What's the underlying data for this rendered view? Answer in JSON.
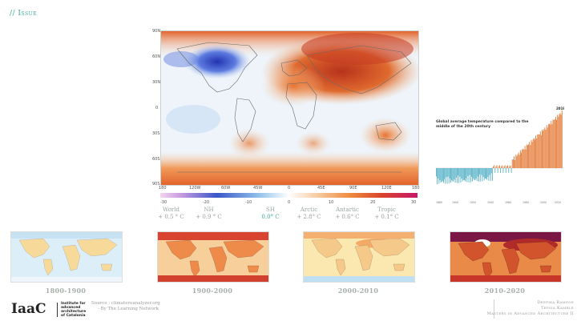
{
  "header": {
    "issue": "// Issue"
  },
  "main_map": {
    "lat_labels": [
      "90N",
      "60N",
      "30N",
      "0",
      "30S",
      "60S",
      "90S"
    ],
    "lon_labels": [
      "180",
      "120W",
      "60W",
      "45W",
      "0",
      "45E",
      "90E",
      "120E",
      "180"
    ],
    "colorbar_ticks": [
      "-30",
      "-20",
      "-10",
      "0",
      "10",
      "20",
      "30"
    ]
  },
  "stats": [
    {
      "label": "World",
      "value": "+ 0.5 ° C"
    },
    {
      "label": "NH",
      "value": "+ 0.9 ° C"
    },
    {
      "label": "SH",
      "value": "0.0° C"
    },
    {
      "label": "Arctic",
      "value": "+ 2.8° C"
    },
    {
      "label": "Antartic",
      "value": "+ 0.6° C"
    },
    {
      "label": "Tropic",
      "value": "+ 0.1° C"
    }
  ],
  "chart": {
    "title": "Global average temperature compared to the middle of the 20th century",
    "year_label": "2019",
    "x_ticks": [
      "1880",
      "1900",
      "1920",
      "1940",
      "1960",
      "1980",
      "2000",
      "2020"
    ]
  },
  "thumbnails": [
    {
      "label": "1800-1900"
    },
    {
      "label": "1900-2000"
    },
    {
      "label": "2000-2010"
    },
    {
      "label": "2010-2020"
    }
  ],
  "footer": {
    "source_line1": "Source : climatereanalyzer.org",
    "source_line2": "- By The Learning Network",
    "logo_mark": "IaaC",
    "logo_text": [
      "Institute for",
      "advanced",
      "architecture",
      "of Catalonia"
    ],
    "credit": [
      "Deepika  Ramesh",
      "Tepsia Kamble",
      "Masters in Advanced Architecture II"
    ]
  },
  "colors": {
    "accent": "#3aa7a0",
    "warm": "#e06a2c",
    "cool": "#3a56c9",
    "bar_warm": "#e57f3d",
    "bar_cool": "#5bb4c9"
  }
}
